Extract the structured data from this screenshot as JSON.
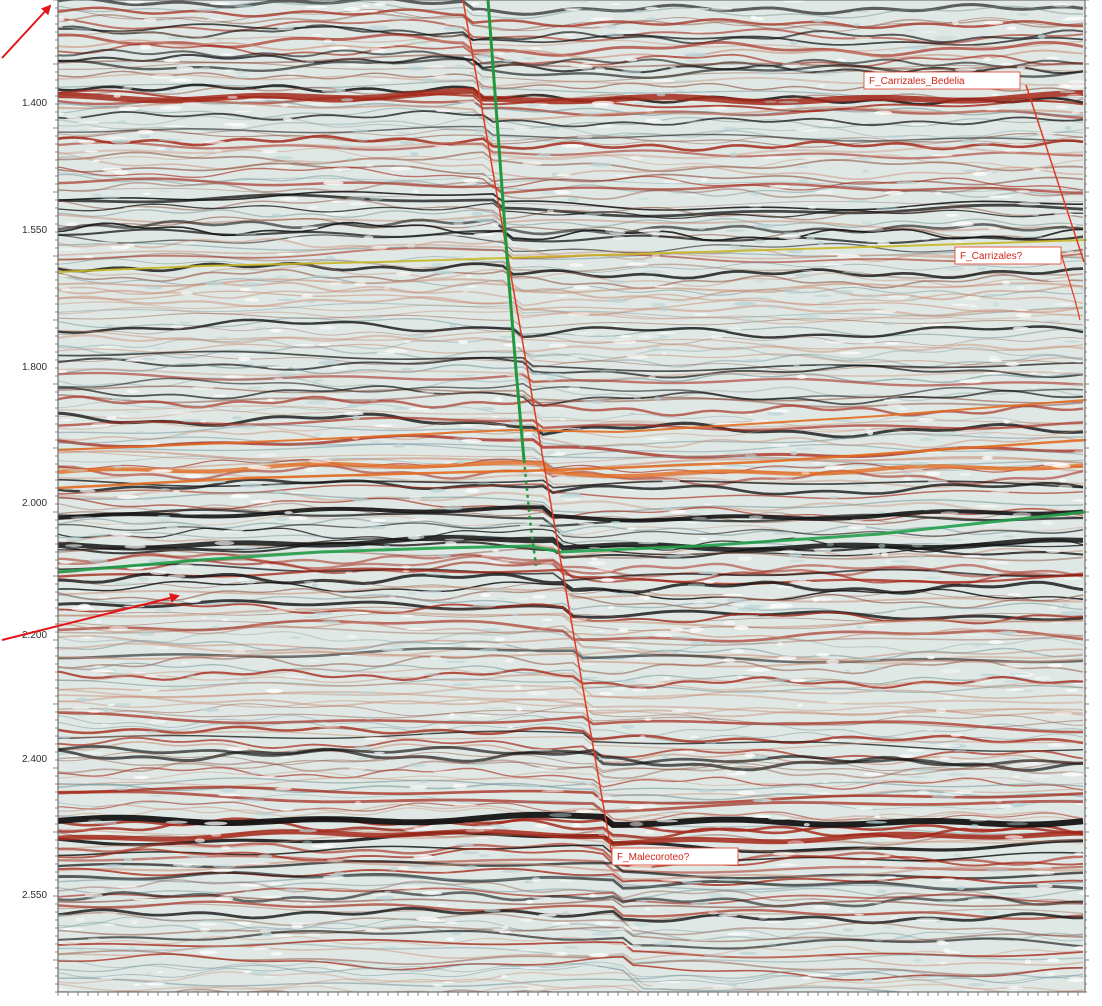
{
  "seismic_section": {
    "time_axis": {
      "tick_labels": [
        "1.400",
        "1.550",
        "1.800",
        "2.000",
        "2.200",
        "2.400",
        "2.550"
      ]
    },
    "horizon_labels": [
      {
        "text": "F_Carrizales_Bedelia"
      },
      {
        "text": "F_Carrizales?"
      },
      {
        "text": "F_Malecoroteo?"
      }
    ],
    "colors": {
      "trough": "#141414",
      "peak": "#a5281a",
      "background": "#dfe8e4",
      "fault": "#e23a22",
      "green_fault": "#1f9a3c",
      "horizon_yellow": "#c9b623",
      "horizon_green": "#21a04a",
      "horizon_orange": "#e26b20",
      "annotation_arrow": "#e3141a"
    },
    "annotations": {
      "arrow_count": 2
    }
  }
}
